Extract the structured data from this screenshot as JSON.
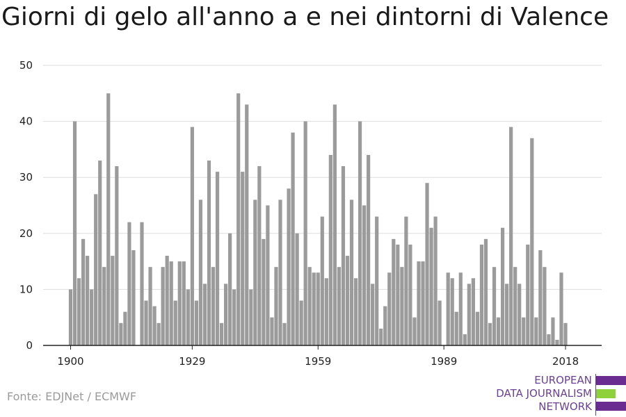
{
  "title": "Giorni di gelo all'anno a e nei dintorni di Valence",
  "source": "Fonte: EDJNet / ECMWF",
  "logo": {
    "lines": [
      "EUROPEAN",
      "DATA JOURNALISM",
      "NETWORK"
    ],
    "colors": {
      "purple": "#6b2c91",
      "green": "#8fd13a"
    }
  },
  "chart_data": {
    "type": "bar",
    "title": "Giorni di gelo all'anno a e nei dintorni di Valence",
    "xlabel": "",
    "ylabel": "",
    "x_ticks": [
      1900,
      1929,
      1959,
      1989,
      2018
    ],
    "y_ticks": [
      0,
      10,
      20,
      30,
      40,
      50
    ],
    "ylim": [
      0,
      50
    ],
    "xlim": [
      1899,
      2019
    ],
    "grid": true,
    "bar_color": "#9b9b9b",
    "x": [
      1900,
      1901,
      1902,
      1903,
      1904,
      1905,
      1906,
      1907,
      1908,
      1909,
      1910,
      1911,
      1912,
      1913,
      1914,
      1915,
      1916,
      1917,
      1918,
      1919,
      1920,
      1921,
      1922,
      1923,
      1924,
      1925,
      1926,
      1927,
      1928,
      1929,
      1930,
      1931,
      1932,
      1933,
      1934,
      1935,
      1936,
      1937,
      1938,
      1939,
      1940,
      1941,
      1942,
      1943,
      1944,
      1945,
      1946,
      1947,
      1948,
      1949,
      1950,
      1951,
      1952,
      1953,
      1954,
      1955,
      1956,
      1957,
      1958,
      1959,
      1960,
      1961,
      1962,
      1963,
      1964,
      1965,
      1966,
      1967,
      1968,
      1969,
      1970,
      1971,
      1972,
      1973,
      1974,
      1975,
      1976,
      1977,
      1978,
      1979,
      1980,
      1981,
      1982,
      1983,
      1984,
      1985,
      1986,
      1987,
      1988,
      1989,
      1990,
      1991,
      1992,
      1993,
      1994,
      1995,
      1996,
      1997,
      1998,
      1999,
      2000,
      2001,
      2002,
      2003,
      2004,
      2005,
      2006,
      2007,
      2008,
      2009,
      2010,
      2011,
      2012,
      2013,
      2014,
      2015,
      2016,
      2017,
      2018
    ],
    "values": [
      10,
      40,
      12,
      19,
      16,
      10,
      27,
      33,
      14,
      45,
      16,
      32,
      4,
      6,
      22,
      17,
      0,
      22,
      8,
      14,
      7,
      4,
      14,
      16,
      15,
      8,
      15,
      15,
      10,
      39,
      8,
      26,
      11,
      33,
      14,
      31,
      4,
      11,
      20,
      10,
      45,
      31,
      43,
      10,
      26,
      32,
      19,
      25,
      5,
      14,
      26,
      4,
      28,
      38,
      20,
      8,
      40,
      14,
      13,
      13,
      23,
      12,
      34,
      43,
      14,
      32,
      16,
      26,
      12,
      40,
      25,
      34,
      11,
      23,
      3,
      7,
      13,
      19,
      18,
      14,
      23,
      18,
      5,
      15,
      15,
      29,
      21,
      23,
      8,
      0,
      13,
      12,
      6,
      13,
      2,
      11,
      12,
      6,
      18,
      19,
      4,
      14,
      5,
      21,
      11,
      39,
      14,
      11,
      5,
      18,
      37,
      5,
      17,
      14,
      2,
      5,
      1,
      13,
      4
    ]
  }
}
